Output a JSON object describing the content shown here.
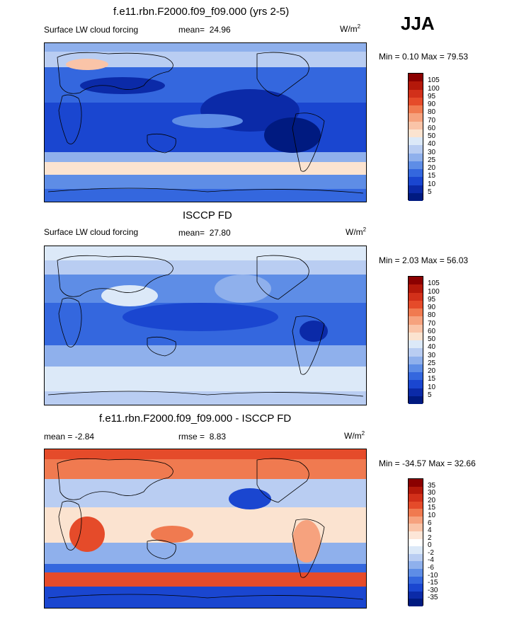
{
  "season": "JJA",
  "panels": [
    {
      "title": "f.e11.rbn.F2000.f09_f09.000 (yrs 2-5)",
      "left_label": "Surface LW cloud forcing",
      "stat_label": "mean=",
      "stat_value": "24.96",
      "units_base": "W/m",
      "units_exp": "2",
      "minmax": "Min =   0.10 Max =  79.53",
      "colorbar_labels": [
        "105",
        "100",
        "95",
        "90",
        "80",
        "70",
        "60",
        "50",
        "40",
        "30",
        "25",
        "20",
        "15",
        "10",
        "5"
      ],
      "colorbar_colors": [
        "#8b0000",
        "#b4180a",
        "#d2301a",
        "#e54b2a",
        "#f07a50",
        "#f6a27e",
        "#fac4a8",
        "#fbe3d0",
        "#dce9f8",
        "#b9cdf2",
        "#8fb0ec",
        "#5e8de6",
        "#3467de",
        "#1a46d0",
        "#0b2aa8",
        "#001a80"
      ]
    },
    {
      "title": "ISCCP FD",
      "left_label": "Surface LW cloud forcing",
      "stat_label": "mean=",
      "stat_value": "27.80",
      "units_base": "W/m",
      "units_exp": "2",
      "minmax": "Min =   2.03 Max =  56.03",
      "colorbar_labels": [
        "105",
        "100",
        "95",
        "90",
        "80",
        "70",
        "60",
        "50",
        "40",
        "30",
        "25",
        "20",
        "15",
        "10",
        "5"
      ],
      "colorbar_colors": [
        "#8b0000",
        "#b4180a",
        "#d2301a",
        "#e54b2a",
        "#f07a50",
        "#f6a27e",
        "#fac4a8",
        "#fbe3d0",
        "#dce9f8",
        "#b9cdf2",
        "#8fb0ec",
        "#5e8de6",
        "#3467de",
        "#1a46d0",
        "#0b2aa8",
        "#001a80"
      ]
    },
    {
      "title": "f.e11.rbn.F2000.f09_f09.000 - ISCCP FD",
      "left_label": "mean =  -2.84",
      "stat_label": "rmse =",
      "stat_value": "8.83",
      "units_base": "W/m",
      "units_exp": "2",
      "minmax": "Min = -34.57 Max =  32.66",
      "colorbar_labels": [
        "35",
        "30",
        "20",
        "15",
        "10",
        "6",
        "4",
        "2",
        "0",
        "-2",
        "-4",
        "-6",
        "-10",
        "-15",
        "-30",
        "-35"
      ],
      "colorbar_colors": [
        "#8b0000",
        "#b4180a",
        "#d2301a",
        "#e54b2a",
        "#f07a50",
        "#f6a27e",
        "#fac4a8",
        "#fde6d8",
        "#ffffff",
        "#dce9f8",
        "#b9cdf2",
        "#8fb0ec",
        "#5e8de6",
        "#3467de",
        "#1a46d0",
        "#0b2aa8",
        "#001a80"
      ]
    }
  ]
}
